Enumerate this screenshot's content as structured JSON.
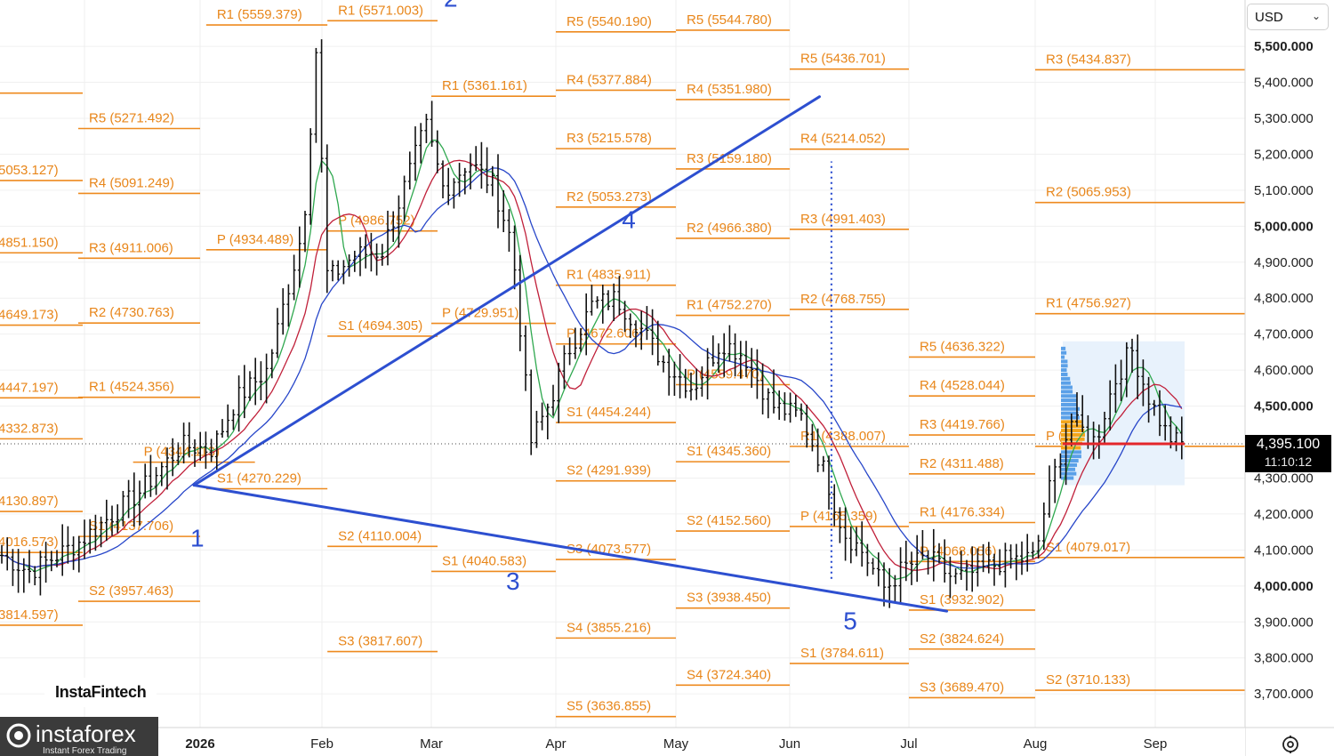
{
  "chart_data": {
    "type": "candlestick",
    "currency": "USD",
    "ylim": [
      3630,
      5720
    ],
    "y_ticks": [
      {
        "v": 5500,
        "label": "5,500.000",
        "bold": true
      },
      {
        "v": 5400,
        "label": "5,400.000"
      },
      {
        "v": 5300,
        "label": "5,300.000"
      },
      {
        "v": 5200,
        "label": "5,200.000"
      },
      {
        "v": 5100,
        "label": "5,100.000"
      },
      {
        "v": 5000,
        "label": "5,000.000",
        "bold": true
      },
      {
        "v": 4900,
        "label": "4,900.000"
      },
      {
        "v": 4800,
        "label": "4,800.000"
      },
      {
        "v": 4700,
        "label": "4,700.000"
      },
      {
        "v": 4600,
        "label": "4,600.000"
      },
      {
        "v": 4500,
        "label": "4,500.000",
        "bold": true
      },
      {
        "v": 4300,
        "label": "4,300.000"
      },
      {
        "v": 4200,
        "label": "4,200.000"
      },
      {
        "v": 4100,
        "label": "4,100.000"
      },
      {
        "v": 4000,
        "label": "4,000.000",
        "bold": true
      },
      {
        "v": 3900,
        "label": "3,900.000"
      },
      {
        "v": 3800,
        "label": "3,800.000"
      },
      {
        "v": 3700,
        "label": "3,700.000"
      }
    ],
    "x_ticks": [
      {
        "label": "2026",
        "bold": true,
        "month": 0
      },
      {
        "label": "Feb",
        "month": 1
      },
      {
        "label": "Mar",
        "month": 2
      },
      {
        "label": "Apr",
        "month": 3
      },
      {
        "label": "May",
        "month": 4
      },
      {
        "label": "Jun",
        "month": 5
      },
      {
        "label": "Jul",
        "month": 6
      },
      {
        "label": "Aug",
        "month": 7
      },
      {
        "label": "Sep",
        "month": 8
      }
    ],
    "last_price": "4,395.100",
    "countdown": "11:10:12",
    "pivot_levels": [
      {
        "m": -1.5,
        "label": "",
        "v": 5370
      },
      {
        "m": -1.5,
        "label": "5053.127)",
        "v": 5127
      },
      {
        "m": -1.5,
        "label": "4851.150)",
        "v": 4926
      },
      {
        "m": -1.5,
        "label": "4649.173)",
        "v": 4725
      },
      {
        "m": -1.5,
        "label": "4447.197)",
        "v": 4523
      },
      {
        "m": -1.5,
        "label": "4332.873)",
        "v": 4409
      },
      {
        "m": -1.5,
        "label": "4130.897)",
        "v": 4207
      },
      {
        "m": -1.5,
        "label": "4016.573)",
        "v": 4093
      },
      {
        "m": -1.5,
        "label": "3814.597)",
        "v": 3891
      },
      {
        "m": -0.5,
        "label": "R5 (5271.492)",
        "v": 5271.492
      },
      {
        "m": -0.5,
        "label": "R4 (5091.249)",
        "v": 5091.249
      },
      {
        "m": -0.5,
        "label": "R3 (4911.006)",
        "v": 4911.006
      },
      {
        "m": -0.5,
        "label": "R2 (4730.763)",
        "v": 4730.763
      },
      {
        "m": -0.5,
        "label": "R1 (4524.356)",
        "v": 4524.356
      },
      {
        "m": 0.55,
        "label": "P (4934.489)",
        "v": 4934.489
      },
      {
        "m": 0.55,
        "label": "R1 (5559.379)",
        "v": 5559.379
      },
      {
        "m": -0.05,
        "label": "P (4344.113)",
        "v": 4344.113
      },
      {
        "m": -0.5,
        "label": "S1 (4137.706)",
        "v": 4137.706
      },
      {
        "m": -0.5,
        "label": "S2 (3957.463)",
        "v": 3957.463
      },
      {
        "m": 0.55,
        "label": "S1 (4270.229)",
        "v": 4270.229
      },
      {
        "m": 1.55,
        "label": "R1 (5571.003)",
        "v": 5571.003
      },
      {
        "m": 1.55,
        "label": "P (4986.752)",
        "v": 4986.752
      },
      {
        "m": 1.55,
        "label": "S1 (4694.305)",
        "v": 4694.305
      },
      {
        "m": 1.55,
        "label": "S2 (4110.004)",
        "v": 4110.004
      },
      {
        "m": 1.55,
        "label": "S3 (3817.607)",
        "v": 3817.607
      },
      {
        "m": 2.5,
        "label": "R1 (5361.161)",
        "v": 5361.161
      },
      {
        "m": 2.5,
        "label": "P (4729.951)",
        "v": 4729.951
      },
      {
        "m": 2.5,
        "label": "S1 (4040.583)",
        "v": 4040.583
      },
      {
        "m": 3.5,
        "label": "R5 (5540.190)",
        "v": 5540.19
      },
      {
        "m": 3.5,
        "label": "R4 (5377.884)",
        "v": 5377.884
      },
      {
        "m": 3.5,
        "label": "R3 (5215.578)",
        "v": 5215.578
      },
      {
        "m": 3.5,
        "label": "R2 (5053.273)",
        "v": 5053.273
      },
      {
        "m": 3.5,
        "label": "R1 (4835.911)",
        "v": 4835.911
      },
      {
        "m": 3.5,
        "label": "P (4672.606)",
        "v": 4672.606
      },
      {
        "m": 3.5,
        "label": "S1 (4454.244)",
        "v": 4454.244
      },
      {
        "m": 3.5,
        "label": "S2 (4291.939)",
        "v": 4291.939
      },
      {
        "m": 3.5,
        "label": "S3 (4073.577)",
        "v": 4073.577
      },
      {
        "m": 3.5,
        "label": "S4 (3855.216)",
        "v": 3855.216
      },
      {
        "m": 3.5,
        "label": "S5 (3636.855)",
        "v": 3636.855
      },
      {
        "m": 4.5,
        "label": "R5 (5544.780)",
        "v": 5544.78
      },
      {
        "m": 4.5,
        "label": "R4 (5351.980)",
        "v": 5351.98
      },
      {
        "m": 4.5,
        "label": "R3 (5159.180)",
        "v": 5159.18
      },
      {
        "m": 4.5,
        "label": "R2 (4966.380)",
        "v": 4966.38
      },
      {
        "m": 4.5,
        "label": "R1 (4752.270)",
        "v": 4752.27
      },
      {
        "m": 4.5,
        "label": "P (4559.470)",
        "v": 4559.47
      },
      {
        "m": 4.5,
        "label": "S1 (4345.360)",
        "v": 4345.36
      },
      {
        "m": 4.5,
        "label": "S2 (4152.560)",
        "v": 4152.56
      },
      {
        "m": 4.5,
        "label": "S3 (3938.450)",
        "v": 3938.45
      },
      {
        "m": 4.5,
        "label": "S4 (3724.340)",
        "v": 3724.34
      },
      {
        "m": 5.5,
        "label": "R5 (5436.701)",
        "v": 5436.701
      },
      {
        "m": 5.5,
        "label": "R4 (5214.052)",
        "v": 5214.052
      },
      {
        "m": 5.5,
        "label": "R3 (4991.403)",
        "v": 4991.403
      },
      {
        "m": 5.5,
        "label": "R2 (4768.755)",
        "v": 4768.755
      },
      {
        "m": 5.5,
        "label": "R1 (4388.007)",
        "v": 4388.007
      },
      {
        "m": 5.5,
        "label": "P (4165.359)",
        "v": 4165.359
      },
      {
        "m": 5.5,
        "label": "S1 (3784.611)",
        "v": 3784.611
      },
      {
        "m": 6.5,
        "label": "R5 (4636.322)",
        "v": 4636.322
      },
      {
        "m": 6.5,
        "label": "R4 (4528.044)",
        "v": 4528.044
      },
      {
        "m": 6.5,
        "label": "R3 (4419.766)",
        "v": 4419.766
      },
      {
        "m": 6.5,
        "label": "R2 (4311.488)",
        "v": 4311.488
      },
      {
        "m": 6.5,
        "label": "R1 (4176.334)",
        "v": 4176.334
      },
      {
        "m": 6.5,
        "label": "P (4068.056)",
        "v": 4068.056
      },
      {
        "m": 6.5,
        "label": "S1 (3932.902)",
        "v": 3932.902
      },
      {
        "m": 6.5,
        "label": "S2 (3824.624)",
        "v": 3824.624
      },
      {
        "m": 6.5,
        "label": "S3 (3689.470)",
        "v": 3689.47
      },
      {
        "m": 7.5,
        "label": "R3 (5434.837)",
        "v": 5434.837
      },
      {
        "m": 7.5,
        "label": "R2 (5065.953)",
        "v": 5065.953
      },
      {
        "m": 7.5,
        "label": "R1 (4756.927)",
        "v": 4756.927
      },
      {
        "m": 7.5,
        "label": "P (4388.043)",
        "v": 4388.043
      },
      {
        "m": 7.5,
        "label": "S1 (4079.017)",
        "v": 4079.017
      },
      {
        "m": 7.5,
        "label": "S2 (3710.133)",
        "v": 3710.133
      }
    ],
    "wave_labels": [
      {
        "label": "1",
        "m": -0.08,
        "v": 4110
      },
      {
        "label": "2",
        "m": 2.1,
        "v": 5610
      },
      {
        "label": "3",
        "m": 2.6,
        "v": 3990
      },
      {
        "label": "4",
        "m": 3.55,
        "v": 4995
      },
      {
        "label": "5",
        "m": 5.45,
        "v": 3880
      }
    ],
    "trend_lines": [
      {
        "from": [
          -0.05,
          4280
        ],
        "to": [
          5.25,
          5360
        ]
      },
      {
        "from": [
          -0.05,
          4280
        ],
        "to": [
          6.3,
          3930
        ]
      }
    ],
    "vertical_dotted": {
      "m": 5.35,
      "from": 4020,
      "to": 5180
    },
    "price_anchors": [
      [
        -1.7,
        4100
      ],
      [
        -1.4,
        4040
      ],
      [
        -1.0,
        4120
      ],
      [
        -0.5,
        4260
      ],
      [
        -0.15,
        4390
      ],
      [
        0.1,
        4380
      ],
      [
        0.3,
        4520
      ],
      [
        0.55,
        4600
      ],
      [
        0.85,
        5000
      ],
      [
        0.95,
        5500
      ],
      [
        1.05,
        4850
      ],
      [
        1.3,
        4920
      ],
      [
        1.55,
        4930
      ],
      [
        1.8,
        5150
      ],
      [
        1.95,
        5280
      ],
      [
        2.1,
        5100
      ],
      [
        2.3,
        5180
      ],
      [
        2.5,
        5110
      ],
      [
        2.65,
        4950
      ],
      [
        2.8,
        4400
      ],
      [
        2.95,
        4510
      ],
      [
        3.1,
        4650
      ],
      [
        3.3,
        4780
      ],
      [
        3.5,
        4800
      ],
      [
        3.7,
        4720
      ],
      [
        3.9,
        4620
      ],
      [
        4.15,
        4550
      ],
      [
        4.4,
        4680
      ],
      [
        4.6,
        4640
      ],
      [
        4.85,
        4500
      ],
      [
        5.1,
        4470
      ],
      [
        5.3,
        4310
      ],
      [
        5.45,
        4150
      ],
      [
        5.6,
        4100
      ],
      [
        5.8,
        3990
      ],
      [
        5.95,
        4050
      ],
      [
        6.15,
        4080
      ],
      [
        6.35,
        4020
      ],
      [
        6.55,
        4040
      ],
      [
        6.75,
        4070
      ],
      [
        7.0,
        4080
      ],
      [
        7.1,
        4250
      ],
      [
        7.3,
        4460
      ],
      [
        7.5,
        4400
      ],
      [
        7.65,
        4560
      ],
      [
        7.8,
        4660
      ],
      [
        7.95,
        4520
      ],
      [
        8.1,
        4420
      ],
      [
        8.2,
        4395
      ]
    ]
  },
  "ui": {
    "currency_label": "USD",
    "brand_primary": "InstaFintech",
    "brand_secondary": "instaforex",
    "brand_tagline": "Instant Forex Trading"
  }
}
